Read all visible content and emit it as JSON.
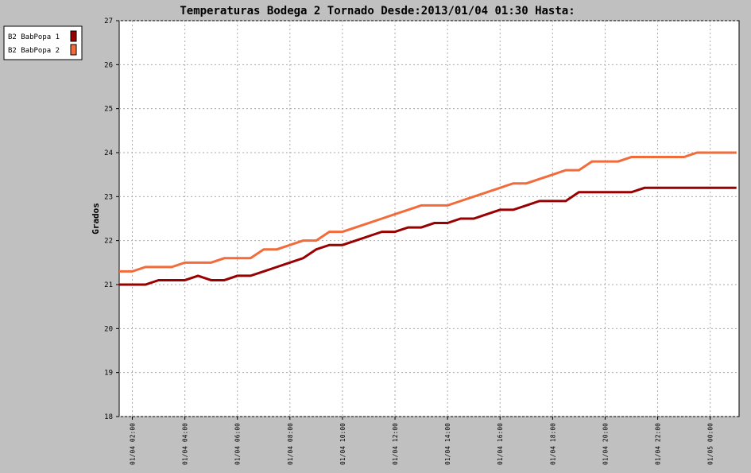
{
  "chart_data": {
    "type": "line",
    "title": "Temperaturas Bodega 2 Tornado Desde:2013/01/04 01:30 Hasta:",
    "y_label": "Grados",
    "x": [
      1.5,
      2,
      2.5,
      3,
      3.5,
      4,
      4.5,
      5,
      5.5,
      6,
      6.5,
      7,
      7.5,
      8,
      8.5,
      9,
      9.5,
      10,
      10.5,
      11,
      11.5,
      12,
      12.5,
      13,
      13.5,
      14,
      14.5,
      15,
      15.5,
      16,
      16.5,
      17,
      17.5,
      18,
      18.5,
      19,
      19.5,
      20,
      20.5,
      21,
      21.5,
      22,
      22.5,
      23,
      23.5,
      24,
      24.5,
      25
    ],
    "series": [
      {
        "name": "B2 BabPopa 1",
        "color": "#990000",
        "values": [
          21.0,
          21.0,
          21.0,
          21.1,
          21.1,
          21.1,
          21.2,
          21.1,
          21.1,
          21.2,
          21.2,
          21.3,
          21.4,
          21.5,
          21.6,
          21.8,
          21.9,
          21.9,
          22.0,
          22.1,
          22.2,
          22.2,
          22.3,
          22.3,
          22.4,
          22.4,
          22.5,
          22.5,
          22.6,
          22.7,
          22.7,
          22.8,
          22.9,
          22.9,
          22.9,
          23.1,
          23.1,
          23.1,
          23.1,
          23.1,
          23.2,
          23.2,
          23.2,
          23.2,
          23.2,
          23.2,
          23.2,
          23.2
        ]
      },
      {
        "name": "B2 BabPopa 2",
        "color": "#f26b3a",
        "values": [
          21.3,
          21.3,
          21.4,
          21.4,
          21.4,
          21.5,
          21.5,
          21.5,
          21.6,
          21.6,
          21.6,
          21.8,
          21.8,
          21.9,
          22.0,
          22.0,
          22.2,
          22.2,
          22.3,
          22.4,
          22.5,
          22.6,
          22.7,
          22.8,
          22.8,
          22.8,
          22.9,
          23.0,
          23.1,
          23.2,
          23.3,
          23.3,
          23.4,
          23.5,
          23.6,
          23.6,
          23.8,
          23.8,
          23.8,
          23.9,
          23.9,
          23.9,
          23.9,
          23.9,
          24.0,
          24.0,
          24.0,
          24.0
        ]
      }
    ],
    "xlim": [
      1.5,
      25.1
    ],
    "xticks": [
      {
        "value": 2,
        "label": "01/04 02:00"
      },
      {
        "value": 4,
        "label": "01/04 04:00"
      },
      {
        "value": 6,
        "label": "01/04 06:00"
      },
      {
        "value": 8,
        "label": "01/04 08:00"
      },
      {
        "value": 10,
        "label": "01/04 10:00"
      },
      {
        "value": 12,
        "label": "01/04 12:00"
      },
      {
        "value": 14,
        "label": "01/04 14:00"
      },
      {
        "value": 16,
        "label": "01/04 16:00"
      },
      {
        "value": 18,
        "label": "01/04 18:00"
      },
      {
        "value": 20,
        "label": "01/04 20:00"
      },
      {
        "value": 22,
        "label": "01/04 22:00"
      },
      {
        "value": 24,
        "label": "01/05 00:00"
      }
    ],
    "ylim": [
      18,
      27
    ],
    "yticks": [
      18,
      19,
      20,
      21,
      22,
      23,
      24,
      25,
      26,
      27
    ],
    "grid": true,
    "legend": "upper left"
  }
}
